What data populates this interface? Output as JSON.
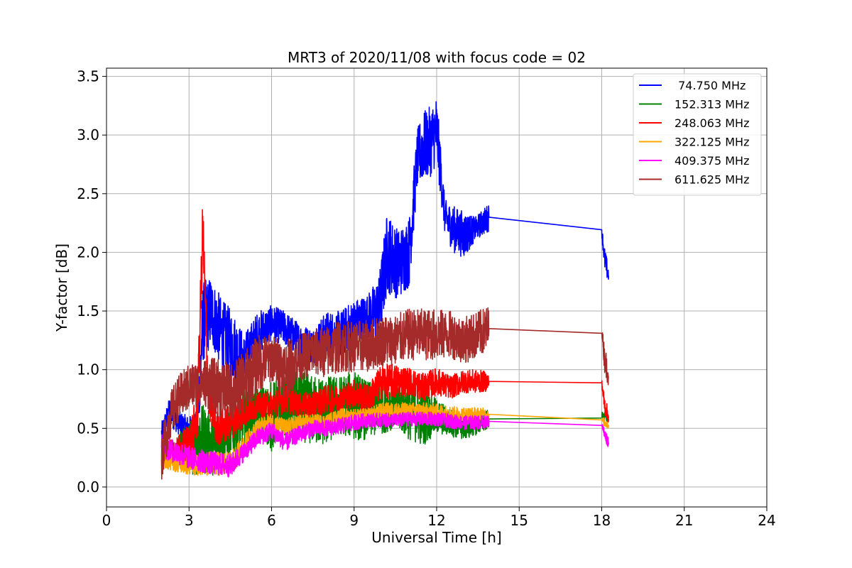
{
  "chart_data": {
    "type": "line",
    "title": "MRT3 of 2020/11/08 with focus code = 02",
    "xlabel": "Universal Time [h]",
    "ylabel": "Y-factor [dB]",
    "xlim": [
      0,
      24
    ],
    "ylim": [
      -0.17,
      3.57
    ],
    "xticks": [
      0,
      3,
      6,
      9,
      12,
      15,
      18,
      21,
      24
    ],
    "xtick_labels": [
      "0",
      "3",
      "6",
      "9",
      "12",
      "15",
      "18",
      "21",
      "24"
    ],
    "yticks": [
      0.0,
      0.5,
      1.0,
      1.5,
      2.0,
      2.5,
      3.0,
      3.5
    ],
    "ytick_labels": [
      "0.0",
      "0.5",
      "1.0",
      "1.5",
      "2.0",
      "2.5",
      "3.0",
      "3.5"
    ],
    "grid": true,
    "legend_position": "top-right",
    "series": [
      {
        "name": " 74.750 MHz",
        "color": "#0000ff",
        "x": [
          2.0,
          2.3,
          2.6,
          3.0,
          3.3,
          3.5,
          3.8,
          4.2,
          4.6,
          5.0,
          5.5,
          6.0,
          6.5,
          7.0,
          7.5,
          8.0,
          8.5,
          9.0,
          9.5,
          9.9,
          10.2,
          10.6,
          11.0,
          11.3,
          11.5,
          11.8,
          12.0,
          12.3,
          12.6,
          13.0,
          13.4,
          13.9,
          18.0,
          18.1,
          18.25
        ],
        "y": [
          0.45,
          0.65,
          0.55,
          0.5,
          0.5,
          1.4,
          1.5,
          1.3,
          1.2,
          1.1,
          1.3,
          1.4,
          1.35,
          1.25,
          1.2,
          1.3,
          1.3,
          1.4,
          1.45,
          1.5,
          2.0,
          1.9,
          2.0,
          2.8,
          2.9,
          2.95,
          3.05,
          2.3,
          2.2,
          2.15,
          2.2,
          2.3,
          2.19,
          1.95,
          1.8
        ],
        "amp": [
          0.1,
          0.12,
          0.1,
          0.1,
          0.15,
          0.35,
          0.3,
          0.3,
          0.3,
          0.2,
          0.2,
          0.15,
          0.15,
          0.15,
          0.15,
          0.2,
          0.2,
          0.2,
          0.2,
          0.3,
          0.35,
          0.3,
          0.3,
          0.25,
          0.3,
          0.3,
          0.3,
          0.15,
          0.2,
          0.2,
          0.1,
          0.12,
          0.05,
          0.1,
          0.08
        ]
      },
      {
        "name": "152.313 MHz",
        "color": "#008000",
        "x": [
          2.0,
          2.5,
          3.0,
          3.5,
          4.0,
          4.5,
          5.0,
          5.5,
          6.0,
          6.5,
          7.0,
          7.5,
          8.0,
          8.5,
          9.0,
          9.5,
          10.0,
          10.5,
          11.0,
          11.5,
          12.0,
          12.5,
          13.0,
          13.5,
          13.9,
          18.0,
          18.1,
          18.25
        ],
        "y": [
          0.3,
          0.3,
          0.35,
          0.4,
          0.35,
          0.45,
          0.6,
          0.65,
          0.6,
          0.7,
          0.7,
          0.65,
          0.65,
          0.7,
          0.7,
          0.65,
          0.7,
          0.7,
          0.65,
          0.6,
          0.6,
          0.55,
          0.5,
          0.55,
          0.58,
          0.61,
          0.6,
          0.58
        ],
        "amp": [
          0.1,
          0.1,
          0.25,
          0.3,
          0.25,
          0.2,
          0.25,
          0.2,
          0.3,
          0.25,
          0.3,
          0.3,
          0.3,
          0.25,
          0.3,
          0.25,
          0.25,
          0.2,
          0.25,
          0.25,
          0.15,
          0.12,
          0.1,
          0.1,
          0.08,
          0.03,
          0.04,
          0.04
        ]
      },
      {
        "name": "248.063 MHz",
        "color": "#ff0000",
        "x": [
          2.0,
          2.5,
          3.0,
          3.3,
          3.5,
          3.7,
          4.0,
          4.5,
          5.0,
          5.5,
          6.0,
          6.5,
          7.0,
          7.5,
          8.0,
          8.5,
          9.0,
          9.5,
          10.0,
          10.5,
          11.0,
          11.5,
          12.0,
          12.5,
          13.0,
          13.5,
          13.9,
          18.0,
          18.1,
          18.25
        ],
        "y": [
          0.3,
          0.3,
          0.35,
          0.6,
          2.2,
          0.8,
          0.5,
          0.55,
          0.65,
          0.7,
          0.7,
          0.75,
          0.7,
          0.7,
          0.75,
          0.75,
          0.8,
          0.75,
          0.9,
          0.9,
          0.9,
          0.85,
          0.9,
          0.85,
          0.9,
          0.9,
          0.9,
          0.89,
          0.7,
          0.6
        ],
        "amp": [
          0.1,
          0.1,
          0.2,
          0.2,
          0.3,
          0.2,
          0.15,
          0.15,
          0.15,
          0.1,
          0.12,
          0.12,
          0.1,
          0.12,
          0.12,
          0.12,
          0.12,
          0.12,
          0.15,
          0.15,
          0.12,
          0.12,
          0.12,
          0.1,
          0.1,
          0.1,
          0.08,
          0.03,
          0.08,
          0.06
        ]
      },
      {
        "name": "322.125 MHz",
        "color": "#ffa500",
        "x": [
          2.0,
          2.5,
          3.0,
          3.5,
          4.0,
          4.5,
          5.0,
          5.5,
          6.0,
          6.5,
          7.0,
          7.5,
          8.0,
          8.5,
          9.0,
          9.5,
          10.0,
          10.5,
          11.0,
          11.5,
          12.0,
          12.5,
          13.0,
          13.5,
          13.9,
          18.0,
          18.1,
          18.25
        ],
        "y": [
          0.25,
          0.2,
          0.18,
          0.2,
          0.2,
          0.2,
          0.35,
          0.5,
          0.55,
          0.5,
          0.55,
          0.55,
          0.55,
          0.6,
          0.6,
          0.6,
          0.65,
          0.65,
          0.65,
          0.65,
          0.65,
          0.63,
          0.62,
          0.62,
          0.62,
          0.57,
          0.55,
          0.53
        ],
        "amp": [
          0.08,
          0.07,
          0.08,
          0.1,
          0.1,
          0.1,
          0.1,
          0.08,
          0.08,
          0.08,
          0.07,
          0.07,
          0.07,
          0.07,
          0.07,
          0.07,
          0.07,
          0.07,
          0.07,
          0.07,
          0.06,
          0.06,
          0.06,
          0.06,
          0.05,
          0.02,
          0.04,
          0.04
        ]
      },
      {
        "name": "409.375 MHz",
        "color": "#ff00ff",
        "x": [
          2.0,
          2.5,
          3.0,
          3.5,
          4.0,
          4.5,
          5.0,
          5.5,
          6.0,
          6.5,
          7.0,
          7.5,
          8.0,
          8.5,
          9.0,
          9.5,
          10.0,
          10.5,
          11.0,
          11.5,
          12.0,
          12.5,
          13.0,
          13.5,
          13.9,
          18.0,
          18.1,
          18.25
        ],
        "y": [
          0.35,
          0.3,
          0.25,
          0.22,
          0.2,
          0.18,
          0.3,
          0.42,
          0.48,
          0.38,
          0.45,
          0.5,
          0.5,
          0.52,
          0.55,
          0.57,
          0.57,
          0.57,
          0.58,
          0.58,
          0.58,
          0.56,
          0.55,
          0.55,
          0.56,
          0.54,
          0.45,
          0.38
        ],
        "amp": [
          0.1,
          0.1,
          0.1,
          0.1,
          0.1,
          0.1,
          0.08,
          0.08,
          0.08,
          0.08,
          0.07,
          0.07,
          0.07,
          0.07,
          0.07,
          0.06,
          0.06,
          0.06,
          0.06,
          0.06,
          0.06,
          0.06,
          0.06,
          0.06,
          0.05,
          0.02,
          0.05,
          0.05
        ]
      },
      {
        "name": "611.625 MHz",
        "color": "#a52a2a",
        "x": [
          2.0,
          2.3,
          2.6,
          3.0,
          3.5,
          4.0,
          4.5,
          5.0,
          5.5,
          6.0,
          6.5,
          7.0,
          7.5,
          8.0,
          8.5,
          9.0,
          9.5,
          10.0,
          10.5,
          11.0,
          11.5,
          12.0,
          12.5,
          13.0,
          13.5,
          13.9,
          18.0,
          18.1,
          18.25
        ],
        "y": [
          0.25,
          0.6,
          0.75,
          0.85,
          0.9,
          0.85,
          0.8,
          0.9,
          1.05,
          1.1,
          1.0,
          1.1,
          1.15,
          1.15,
          1.2,
          1.2,
          1.2,
          1.25,
          1.25,
          1.3,
          1.3,
          1.3,
          1.3,
          1.25,
          1.3,
          1.35,
          1.34,
          1.1,
          0.95
        ],
        "amp": [
          0.2,
          0.2,
          0.2,
          0.2,
          0.2,
          0.25,
          0.25,
          0.25,
          0.25,
          0.2,
          0.25,
          0.2,
          0.2,
          0.22,
          0.22,
          0.22,
          0.22,
          0.22,
          0.22,
          0.22,
          0.22,
          0.22,
          0.2,
          0.2,
          0.2,
          0.2,
          0.03,
          0.12,
          0.1
        ]
      }
    ]
  }
}
